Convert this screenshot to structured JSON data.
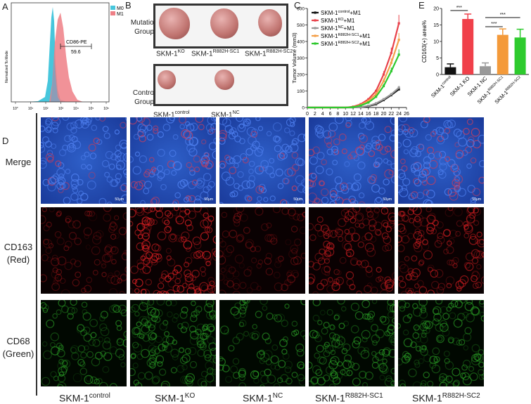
{
  "panels": {
    "a": "A",
    "b": "B",
    "c": "C",
    "d": "D",
    "e": "E"
  },
  "panel_a": {
    "ylabel": "Normalized To Mode",
    "xticks": [
      "10°",
      "10¹",
      "10²",
      "10³",
      "10⁴",
      "10⁵",
      "10⁶"
    ],
    "gate_label": "CD86-PE",
    "gate_value": "59.6",
    "legend": [
      {
        "name": "M0",
        "color": "#47c6dc"
      },
      {
        "name": "M1",
        "color": "#ee7f86"
      }
    ]
  },
  "panel_b": {
    "mutation_group": "Mutation\nGroup",
    "control_group": "Control\nGroup",
    "mutation_labels": [
      {
        "base": "SKM-1",
        "sup": "KO"
      },
      {
        "base": "SKM-1",
        "sup": "R882H-SC1"
      },
      {
        "base": "SKM-1",
        "sup": "R882H-SC2"
      }
    ],
    "control_labels": [
      {
        "base": "SKM-1",
        "sup": "control"
      },
      {
        "base": "SKM-1",
        "sup": "NC"
      }
    ]
  },
  "panel_d": {
    "rows": [
      "Merge",
      "CD163\n(Red)",
      "CD68\n(Green)"
    ],
    "columns": [
      {
        "base": "SKM-1",
        "sup": "control"
      },
      {
        "base": "SKM-1",
        "sup": "KO"
      },
      {
        "base": "SKM-1",
        "sup": "NC"
      },
      {
        "base": "SKM-1",
        "sup": "R882H-SC1"
      },
      {
        "base": "SKM-1",
        "sup": "R882H-SC2"
      }
    ],
    "scalebar": "50μm"
  },
  "chart_data": [
    {
      "type": "line",
      "panel": "C",
      "xlabel": "Days",
      "ylabel": "Tumor Volume (mm3)",
      "xlim": [
        0,
        26
      ],
      "ylim": [
        0,
        600
      ],
      "xticks": [
        0,
        2,
        4,
        6,
        8,
        10,
        12,
        14,
        16,
        18,
        20,
        22,
        24,
        26
      ],
      "yticks": [
        0,
        100,
        200,
        300,
        400,
        500,
        600
      ],
      "x": [
        0,
        2,
        4,
        6,
        8,
        10,
        12,
        14,
        16,
        18,
        20,
        22,
        24
      ],
      "series": [
        {
          "name": "SKM-1^control+M1",
          "color": "#111111",
          "values": [
            0,
            0,
            0,
            0,
            0,
            0,
            0,
            2,
            8,
            20,
            45,
            75,
            110
          ]
        },
        {
          "name": "SKM-1^KO+M1",
          "color": "#e8414a",
          "values": [
            0,
            0,
            0,
            0,
            0,
            0,
            5,
            20,
            50,
            100,
            200,
            330,
            510
          ]
        },
        {
          "name": "SKM-1^NC+M1",
          "color": "#999999",
          "values": [
            0,
            0,
            0,
            0,
            0,
            0,
            0,
            3,
            10,
            25,
            50,
            80,
            120
          ]
        },
        {
          "name": "SKM-1^R882H-SC1+M1",
          "color": "#f4a04a",
          "values": [
            0,
            0,
            0,
            0,
            0,
            0,
            3,
            15,
            40,
            80,
            160,
            270,
            410
          ]
        },
        {
          "name": "SKM-1^R882H-SC2+M1",
          "color": "#2ec82e",
          "values": [
            0,
            0,
            0,
            0,
            0,
            0,
            2,
            12,
            30,
            65,
            130,
            220,
            320
          ]
        }
      ]
    },
    {
      "type": "bar",
      "panel": "E",
      "ylabel": "CD163(+) area%",
      "ylim": [
        0,
        20
      ],
      "yticks": [
        0,
        5,
        10,
        15,
        20
      ],
      "categories": [
        "SKM-1^control",
        "SKM-1 KO",
        "SKM-1 NC",
        "SKM-1^R882H-SC1",
        "SKM-1^R882H-SC2"
      ],
      "values": [
        2.2,
        16.8,
        2.5,
        12.0,
        11.2
      ],
      "errors": [
        1.0,
        1.5,
        1.0,
        1.8,
        2.5
      ],
      "colors": [
        "#111111",
        "#f0404a",
        "#999999",
        "#f49a3a",
        "#2ecb2e"
      ],
      "significance": [
        {
          "from": 0,
          "to": 1,
          "label": "***"
        },
        {
          "from": 2,
          "to": 3,
          "label": "***"
        },
        {
          "from": 2,
          "to": 4,
          "label": "***"
        }
      ]
    }
  ]
}
